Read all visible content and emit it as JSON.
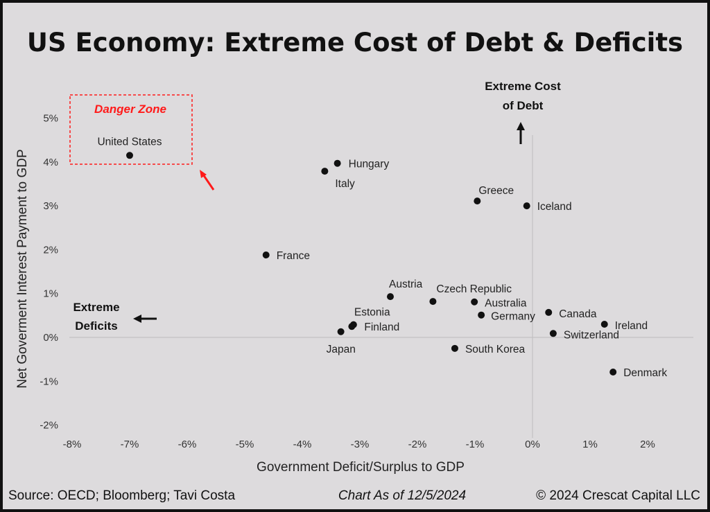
{
  "chart_data": {
    "type": "scatter",
    "title": "US Economy: Extreme Cost of Debt & Deficits",
    "xlabel": "Government Deficit/Surplus to GDP",
    "ylabel": "Net Goverment Interest Payment to GDP",
    "xlim": [
      -8,
      2
    ],
    "ylim": [
      -2,
      5
    ],
    "xticks": [
      "-8%",
      "-7%",
      "-6%",
      "-5%",
      "-4%",
      "-3%",
      "-2%",
      "-1%",
      "0%",
      "1%",
      "2%"
    ],
    "yticks": [
      "5%",
      "4%",
      "3%",
      "2%",
      "1%",
      "0%",
      "-1%",
      "-2%"
    ],
    "grid": false,
    "points": [
      {
        "label": "United States",
        "x": -7.0,
        "y": 4.15
      },
      {
        "label": "Hungary",
        "x": -3.39,
        "y": 3.97
      },
      {
        "label": "Italy",
        "x": -3.61,
        "y": 3.79
      },
      {
        "label": "Greece",
        "x": -0.96,
        "y": 3.11
      },
      {
        "label": "Iceland",
        "x": -0.1,
        "y": 3.0
      },
      {
        "label": "France",
        "x": -4.63,
        "y": 1.88
      },
      {
        "label": "Austria",
        "x": -2.47,
        "y": 0.93
      },
      {
        "label": "Czech Republic",
        "x": -1.73,
        "y": 0.82
      },
      {
        "label": "Australia",
        "x": -1.01,
        "y": 0.81
      },
      {
        "label": "Germany",
        "x": -0.89,
        "y": 0.51
      },
      {
        "label": "Canada",
        "x": 0.28,
        "y": 0.57
      },
      {
        "label": "Ireland",
        "x": 1.25,
        "y": 0.3
      },
      {
        "label": "Switzerland",
        "x": 0.36,
        "y": 0.09
      },
      {
        "label": "Estonia",
        "x": -3.11,
        "y": 0.29
      },
      {
        "label": "Finland",
        "x": -3.14,
        "y": 0.25
      },
      {
        "label": "Japan",
        "x": -3.33,
        "y": 0.13
      },
      {
        "label": "South Korea",
        "x": -1.35,
        "y": -0.25
      },
      {
        "label": "Denmark",
        "x": 1.4,
        "y": -0.79
      }
    ],
    "annotations": {
      "danger_zone": "Danger Zone",
      "extreme_cost_line1": "Extreme Cost",
      "extreme_cost_line2": "of Debt",
      "extreme_deficits_line1": "Extreme",
      "extreme_deficits_line2": "Deficits"
    },
    "colors": {
      "points": "#111111",
      "danger": "#ff1a1a",
      "background": "#dddbdd"
    }
  },
  "footer": {
    "source": "Source: OECD; Bloomberg; Tavi Costa",
    "date": "Chart As of 12/5/2024",
    "copyright": "© 2024 Crescat Capital LLC"
  }
}
